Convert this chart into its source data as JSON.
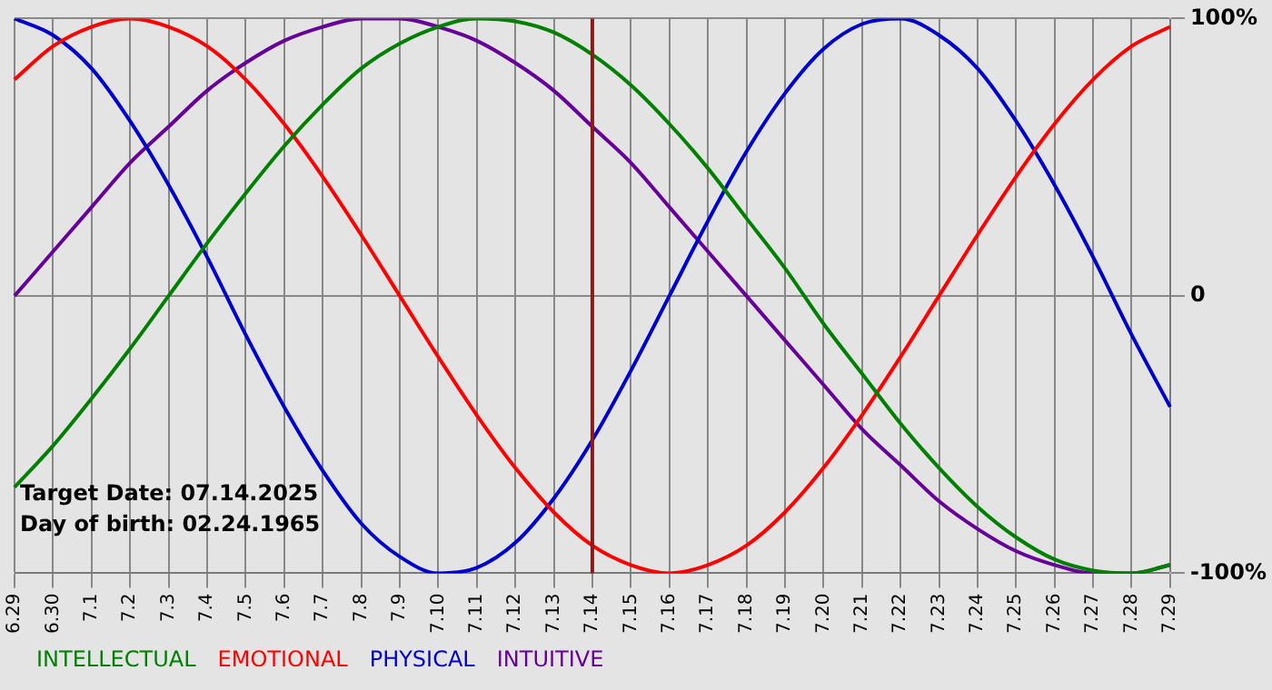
{
  "chart_data": {
    "type": "line",
    "categories": [
      "6.29",
      "6.30",
      "7.1",
      "7.2",
      "7.3",
      "7.4",
      "7.5",
      "7.6",
      "7.7",
      "7.8",
      "7.9",
      "7.10",
      "7.11",
      "7.12",
      "7.13",
      "7.14",
      "7.15",
      "7.16",
      "7.17",
      "7.18",
      "7.19",
      "7.20",
      "7.21",
      "7.22",
      "7.23",
      "7.24",
      "7.25",
      "7.26",
      "7.27",
      "7.28",
      "7.29"
    ],
    "series": [
      {
        "name": "INTELLECTUAL",
        "color": "#008000",
        "values": [
          -69,
          -54,
          -37,
          -19,
          0,
          19,
          37,
          54,
          69,
          82,
          91,
          97,
          100,
          99,
          95,
          87,
          76,
          62,
          46,
          28,
          10,
          -10,
          -28,
          -46,
          -62,
          -76,
          -87,
          -95,
          -99,
          -100,
          -97
        ]
      },
      {
        "name": "EMOTIONAL",
        "color": "#ff0000",
        "values": [
          78,
          90,
          97,
          100,
          97,
          90,
          78,
          62,
          43,
          22,
          0,
          -22,
          -43,
          -62,
          -78,
          -90,
          -97,
          -100,
          -97,
          -90,
          -78,
          -62,
          -43,
          -22,
          0,
          22,
          43,
          62,
          78,
          90,
          97
        ]
      },
      {
        "name": "PHYSICAL",
        "color": "#0000cc",
        "values": [
          100,
          94,
          82,
          63,
          40,
          14,
          -14,
          -40,
          -63,
          -82,
          -94,
          -100,
          -98,
          -89,
          -73,
          -52,
          -27,
          0,
          27,
          52,
          73,
          89,
          98,
          100,
          94,
          82,
          63,
          40,
          14,
          -14,
          -40
        ]
      },
      {
        "name": "INTUITIVE",
        "color": "#660099",
        "values": [
          0,
          16,
          32,
          48,
          61,
          74,
          84,
          92,
          97,
          100,
          100,
          97,
          92,
          84,
          74,
          61,
          48,
          32,
          16,
          0,
          -16,
          -32,
          -48,
          -61,
          -74,
          -84,
          -92,
          -97,
          -100,
          -100,
          -97
        ]
      }
    ],
    "ylim": [
      -100,
      100
    ],
    "yticks": [
      {
        "value": -100,
        "label": "-100%"
      },
      0,
      {
        "value": 100,
        "label": "100%"
      }
    ],
    "ref_lines": [
      {
        "axis": "x",
        "value": "7.14",
        "color": "#8b1a1a"
      }
    ],
    "annotations": [
      "Target Date: 07.14.2025",
      "Day of birth: 02.24.1965"
    ],
    "grid": true,
    "legend": "bottom left",
    "marker": "none",
    "line_style": "solid"
  }
}
